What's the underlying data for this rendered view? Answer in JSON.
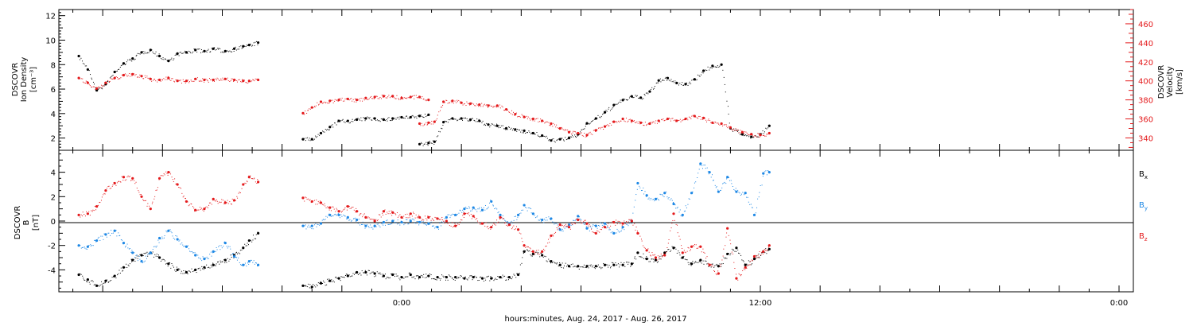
{
  "xlabel": "hours:minutes, Aug. 24, 2017 - Aug. 26, 2017",
  "x_ticks": [
    "0:00",
    "12:00",
    "0:00"
  ],
  "colors": {
    "black": "#000000",
    "red": "#e41a1c",
    "blue": "#1e88e5"
  },
  "chart_data": [
    {
      "type": "scatter",
      "panel": "plasma",
      "ylabel_left": [
        "DSCOVR",
        "Ion Density",
        "[cm⁻³]"
      ],
      "ylabel_right": [
        "DSCOVR",
        "Velocity",
        "[km/s]"
      ],
      "ylim_left": [
        1,
        12.5
      ],
      "ylim_right": [
        327,
        475
      ],
      "yticks_left": [
        "2",
        "4",
        "6",
        "8",
        "10",
        "12"
      ],
      "yticks_right": [
        "340",
        "360",
        "380",
        "400",
        "420",
        "440",
        "460"
      ],
      "x_unit": "hours from Aug 24 00:00",
      "xlim": [
        -11,
        24.4
      ],
      "series": [
        {
          "axis": "left",
          "color": "black",
          "x": [
            -10.8,
            -10.5,
            -10.2,
            -9.9,
            -9.6,
            -9.3,
            -9.0,
            -8.7,
            -8.4,
            -8.1,
            -7.8,
            -7.5,
            -7.2,
            -6.9,
            -6.6,
            -6.3,
            -5.9,
            -5.6,
            -5.3,
            -5.1,
            -4.8,
            -3.3,
            -3.0,
            -2.7,
            -2.4,
            -2.1,
            -1.8,
            -1.5,
            -1.2,
            -0.9,
            -0.6,
            -0.3,
            0.0,
            0.3,
            0.6,
            0.9,
            0.6,
            0.9,
            1.1,
            1.4,
            1.7,
            2.0,
            2.3,
            2.6,
            2.9,
            3.2,
            3.5,
            3.8,
            4.1,
            4.4,
            4.7,
            5.0,
            5.3,
            5.6,
            5.9,
            6.2,
            6.5,
            6.8,
            7.1,
            7.4,
            7.7,
            8.0,
            8.3,
            8.6,
            8.9,
            9.2,
            9.5,
            9.8,
            10.1,
            10.4,
            10.7,
            11.0,
            11.4,
            11.7,
            12.0,
            12.3
          ],
          "y": [
            8.7,
            7.6,
            5.9,
            6.4,
            7.4,
            8.1,
            8.5,
            9.0,
            9.2,
            8.7,
            8.3,
            8.9,
            9.0,
            9.2,
            9.1,
            9.3,
            9.1,
            9.3,
            9.5,
            9.6,
            9.8,
            1.9,
            1.9,
            2.4,
            2.9,
            3.4,
            3.4,
            3.5,
            3.6,
            3.6,
            3.5,
            3.6,
            3.7,
            3.7,
            3.8,
            3.9,
            1.5,
            1.6,
            1.7,
            3.3,
            3.6,
            3.6,
            3.5,
            3.4,
            3.1,
            3.0,
            2.8,
            2.7,
            2.6,
            2.4,
            2.2,
            1.8,
            1.9,
            2.0,
            2.3,
            3.2,
            3.6,
            4.1,
            4.7,
            5.1,
            5.4,
            5.3,
            5.8,
            6.7,
            6.9,
            6.5,
            6.4,
            6.8,
            7.5,
            7.9,
            8.0,
            2.8,
            2.3,
            2.1,
            2.3,
            3.0
          ]
        },
        {
          "axis": "right",
          "color": "red",
          "x": [
            -10.8,
            -10.5,
            -10.2,
            -9.9,
            -9.6,
            -9.3,
            -9.0,
            -8.7,
            -8.4,
            -8.1,
            -7.8,
            -7.5,
            -7.2,
            -6.9,
            -6.6,
            -6.3,
            -5.9,
            -5.6,
            -5.3,
            -5.1,
            -4.8,
            -3.3,
            -3.0,
            -2.7,
            -2.4,
            -2.1,
            -1.8,
            -1.5,
            -1.2,
            -0.9,
            -0.6,
            -0.3,
            0.0,
            0.3,
            0.6,
            0.9,
            0.6,
            0.9,
            1.1,
            1.4,
            1.7,
            2.0,
            2.3,
            2.6,
            2.9,
            3.2,
            3.5,
            3.8,
            4.1,
            4.4,
            4.7,
            5.0,
            5.3,
            5.6,
            5.9,
            6.2,
            6.5,
            6.8,
            7.1,
            7.4,
            7.7,
            8.0,
            8.3,
            8.6,
            8.9,
            9.2,
            9.5,
            9.8,
            10.1,
            10.4,
            10.7,
            11.0,
            11.4,
            11.7,
            12.0,
            12.3
          ],
          "y": [
            403,
            398,
            392,
            398,
            403,
            406,
            407,
            405,
            402,
            401,
            403,
            400,
            400,
            402,
            401,
            401,
            402,
            401,
            400,
            400,
            401,
            366,
            372,
            378,
            379,
            380,
            381,
            380,
            382,
            383,
            384,
            384,
            382,
            383,
            383,
            380,
            355,
            356,
            357,
            378,
            379,
            377,
            376,
            375,
            374,
            374,
            370,
            365,
            362,
            360,
            358,
            355,
            350,
            346,
            345,
            343,
            348,
            352,
            357,
            360,
            358,
            356,
            355,
            358,
            360,
            358,
            360,
            363,
            361,
            356,
            355,
            351,
            346,
            344,
            343,
            345
          ]
        }
      ]
    },
    {
      "type": "scatter",
      "panel": "magnetic_field",
      "ylabel_left": [
        "DSCOVR",
        "B",
        "[nT]"
      ],
      "ylim": [
        -5.8,
        5.8
      ],
      "yticks": [
        "-4",
        "-2",
        "0",
        "2",
        "4"
      ],
      "x_unit": "hours from Aug 24 00:00",
      "xlim": [
        -11,
        24.4
      ],
      "legend_placement": "right",
      "series": [
        {
          "name": "Bx",
          "color": "black",
          "x": [
            -10.8,
            -10.5,
            -10.2,
            -9.9,
            -9.6,
            -9.3,
            -9.0,
            -8.7,
            -8.4,
            -8.1,
            -7.8,
            -7.5,
            -7.2,
            -6.9,
            -6.6,
            -6.3,
            -5.9,
            -5.6,
            -5.3,
            -5.1,
            -4.8,
            -3.3,
            -3.0,
            -2.7,
            -2.4,
            -2.1,
            -1.8,
            -1.5,
            -1.2,
            -0.9,
            -0.6,
            -0.3,
            0.0,
            0.3,
            0.6,
            0.9,
            1.2,
            1.5,
            1.8,
            2.1,
            2.4,
            2.7,
            3.0,
            3.3,
            3.6,
            3.9,
            4.1,
            4.4,
            4.7,
            5.0,
            5.3,
            5.6,
            5.9,
            6.2,
            6.5,
            6.8,
            7.1,
            7.4,
            7.7,
            7.9,
            8.2,
            8.5,
            8.8,
            9.1,
            9.4,
            9.7,
            10.0,
            10.3,
            10.6,
            10.9,
            11.2,
            11.5,
            11.8,
            12.1,
            12.3
          ],
          "y": [
            -4.4,
            -4.8,
            -5.3,
            -4.9,
            -4.5,
            -3.8,
            -3.2,
            -2.8,
            -2.6,
            -3.0,
            -3.5,
            -4.0,
            -4.2,
            -4.0,
            -3.8,
            -3.6,
            -3.2,
            -2.8,
            -2.2,
            -1.6,
            -1.0,
            -5.3,
            -5.4,
            -5.1,
            -4.9,
            -4.7,
            -4.5,
            -4.2,
            -4.2,
            -4.3,
            -4.5,
            -4.4,
            -4.6,
            -4.4,
            -4.6,
            -4.5,
            -4.6,
            -4.6,
            -4.6,
            -4.7,
            -4.6,
            -4.7,
            -4.7,
            -4.6,
            -4.6,
            -4.4,
            -2.5,
            -2.7,
            -2.8,
            -3.3,
            -3.6,
            -3.7,
            -3.7,
            -3.7,
            -3.7,
            -3.6,
            -3.6,
            -3.6,
            -3.5,
            -2.6,
            -3.1,
            -3.2,
            -2.6,
            -2.2,
            -3.0,
            -3.5,
            -3.2,
            -3.6,
            -3.7,
            -2.7,
            -2.2,
            -3.6,
            -3.1,
            -2.5,
            -2.3
          ]
        },
        {
          "name": "By",
          "color": "blue",
          "x": [
            -10.8,
            -10.5,
            -10.2,
            -9.9,
            -9.6,
            -9.3,
            -9.0,
            -8.7,
            -8.4,
            -8.1,
            -7.8,
            -7.5,
            -7.2,
            -6.9,
            -6.6,
            -6.3,
            -5.9,
            -5.6,
            -5.3,
            -5.1,
            -4.8,
            -3.3,
            -3.0,
            -2.7,
            -2.4,
            -2.1,
            -1.8,
            -1.5,
            -1.2,
            -0.9,
            -0.6,
            -0.3,
            0.0,
            0.3,
            0.6,
            0.9,
            1.2,
            1.5,
            1.8,
            2.1,
            2.4,
            2.7,
            3.0,
            3.3,
            3.6,
            3.9,
            4.1,
            4.4,
            4.7,
            5.0,
            5.3,
            5.6,
            5.9,
            6.2,
            6.5,
            6.8,
            7.1,
            7.4,
            7.7,
            7.9,
            8.2,
            8.5,
            8.8,
            9.1,
            9.4,
            9.7,
            10.0,
            10.3,
            10.6,
            10.9,
            11.2,
            11.5,
            11.8,
            12.1,
            12.3
          ],
          "y": [
            -2.0,
            -2.1,
            -1.6,
            -1.1,
            -0.8,
            -1.8,
            -2.6,
            -3.3,
            -2.6,
            -1.4,
            -0.8,
            -1.5,
            -2.1,
            -2.8,
            -3.1,
            -2.5,
            -1.8,
            -2.9,
            -3.6,
            -3.3,
            -3.6,
            -0.4,
            -0.4,
            -0.2,
            0.5,
            0.5,
            0.3,
            0.1,
            -0.4,
            -0.4,
            -0.1,
            0.0,
            -0.1,
            0.0,
            -0.1,
            -0.2,
            -0.5,
            0.3,
            0.5,
            1.0,
            1.1,
            0.9,
            1.6,
            0.5,
            -0.2,
            0.5,
            1.3,
            0.6,
            0.1,
            0.2,
            -0.7,
            -0.3,
            0.4,
            -0.6,
            -0.4,
            -0.2,
            -1.0,
            -0.5,
            0.0,
            3.1,
            2.1,
            1.8,
            2.3,
            1.4,
            0.5,
            2.3,
            4.7,
            4.0,
            2.4,
            3.6,
            2.4,
            2.3,
            0.5,
            3.9,
            4.0
          ]
        },
        {
          "name": "Bz",
          "color": "red",
          "x": [
            -10.8,
            -10.5,
            -10.2,
            -9.9,
            -9.6,
            -9.3,
            -9.0,
            -8.7,
            -8.4,
            -8.1,
            -7.8,
            -7.5,
            -7.2,
            -6.9,
            -6.6,
            -6.3,
            -5.9,
            -5.6,
            -5.3,
            -5.1,
            -4.8,
            -3.3,
            -3.0,
            -2.7,
            -2.4,
            -2.1,
            -1.8,
            -1.5,
            -1.2,
            -0.9,
            -0.6,
            -0.3,
            0.0,
            0.3,
            0.6,
            0.9,
            1.2,
            1.5,
            1.8,
            2.1,
            2.4,
            2.7,
            3.0,
            3.3,
            3.6,
            3.9,
            4.1,
            4.4,
            4.7,
            5.0,
            5.3,
            5.6,
            5.9,
            6.2,
            6.5,
            6.8,
            7.1,
            7.4,
            7.7,
            7.9,
            8.2,
            8.5,
            8.8,
            9.1,
            9.4,
            9.7,
            10.0,
            10.3,
            10.6,
            10.9,
            11.2,
            11.5,
            11.8,
            12.1,
            12.3
          ],
          "y": [
            0.5,
            0.6,
            1.2,
            2.5,
            3.1,
            3.6,
            3.5,
            2.0,
            1.0,
            3.5,
            4.0,
            3.0,
            1.6,
            0.9,
            1.0,
            1.8,
            1.5,
            1.7,
            3.0,
            3.6,
            3.2,
            1.9,
            1.6,
            1.5,
            1.1,
            0.8,
            1.2,
            0.8,
            0.3,
            0.0,
            0.8,
            0.7,
            0.3,
            0.6,
            0.3,
            0.3,
            0.2,
            0.0,
            -0.4,
            0.6,
            0.4,
            -0.2,
            -0.5,
            0.3,
            -0.3,
            -0.7,
            -2.0,
            -2.5,
            -2.5,
            -1.2,
            -0.3,
            -0.5,
            0.1,
            -0.2,
            -1.0,
            -0.5,
            -0.1,
            -0.2,
            0.0,
            -1.0,
            -2.4,
            -3.0,
            -2.8,
            0.6,
            -2.6,
            -2.1,
            -2.1,
            -3.6,
            -4.3,
            -0.6,
            -4.7,
            -3.8,
            -2.9,
            -2.5,
            -2.0
          ]
        }
      ]
    }
  ]
}
